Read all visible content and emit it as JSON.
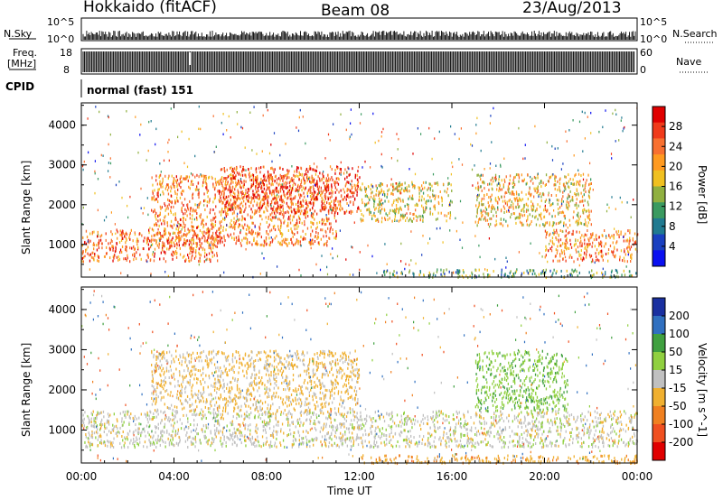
{
  "header": {
    "radar": "Hokkaido (fitACF)",
    "beam": "Beam 08",
    "date": "23/Aug/2013"
  },
  "top_strip": {
    "nsky_label": "N.Sky",
    "nsky_ticks": [
      "10^5",
      "10^0"
    ],
    "nsearch_label": "N.Search",
    "nsearch_ticks": [
      "10^5",
      "10^0"
    ],
    "freq_label_line1": "Freq.",
    "freq_label_line2": "[MHz]",
    "freq_ticks": [
      "18",
      "8"
    ],
    "nave_label": "Nave",
    "nave_ticks": [
      "60",
      "0"
    ],
    "cpid_label": "CPID",
    "cpid_value": "normal (fast) 151"
  },
  "x_axis": {
    "title": "Time UT",
    "ticks": [
      "00:00",
      "04:00",
      "08:00",
      "12:00",
      "16:00",
      "20:00",
      "00:00"
    ]
  },
  "y_axis": {
    "title": "Slant Range [km]",
    "ticks": [
      "4000",
      "3000",
      "2000",
      "1000"
    ]
  },
  "power_scale": {
    "title": "Power [dB]",
    "ticks": [
      "28",
      "24",
      "20",
      "16",
      "12",
      "8",
      "4"
    ],
    "colors": [
      "#e00000",
      "#f03a1a",
      "#f87030",
      "#ff9a20",
      "#f0c020",
      "#90b040",
      "#3a9a60",
      "#207a90",
      "#1a40c0",
      "#0a10f0"
    ]
  },
  "velocity_scale": {
    "title": "Velocity [m s^-1]",
    "ticks": [
      "200",
      "100",
      "50",
      "15",
      "-15",
      "-50",
      "-100",
      "-200"
    ],
    "colors": [
      "#1a30a0",
      "#3070c0",
      "#40a040",
      "#90d040",
      "#c0c0c0",
      "#f0b030",
      "#f08020",
      "#f05020",
      "#e00000"
    ]
  },
  "chart_data": [
    {
      "type": "heatmap",
      "title": "Power [dB]",
      "xlabel": "Time UT",
      "ylabel": "Slant Range [km]",
      "xlim": [
        "00:00",
        "24:00"
      ],
      "ylim": [
        180,
        4560
      ],
      "colorbar_range": [
        0,
        30
      ],
      "bands": [
        {
          "t_start": 0,
          "t_end": 6,
          "r_low": 600,
          "r_high": 1400,
          "level_db": 24
        },
        {
          "t_start": 3,
          "t_end": 11,
          "r_low": 1000,
          "r_high": 2800,
          "level_db": 22
        },
        {
          "t_start": 6,
          "t_end": 12,
          "r_low": 1800,
          "r_high": 3000,
          "level_db": 26
        },
        {
          "t_start": 12,
          "t_end": 16,
          "r_low": 1600,
          "r_high": 2600,
          "level_db": 16
        },
        {
          "t_start": 17,
          "t_end": 22,
          "r_low": 1500,
          "r_high": 2800,
          "level_db": 18
        },
        {
          "t_start": 20,
          "t_end": 24,
          "r_low": 600,
          "r_high": 1400,
          "level_db": 22
        },
        {
          "t_start": 13,
          "t_end": 24,
          "r_low": 200,
          "r_high": 400,
          "level_db": 10
        }
      ]
    },
    {
      "type": "heatmap",
      "title": "Velocity [m s^-1]",
      "xlabel": "Time UT",
      "ylabel": "Slant Range [km]",
      "xlim": [
        "00:00",
        "24:00"
      ],
      "ylim": [
        180,
        4560
      ],
      "colorbar_range": [
        -200,
        200
      ],
      "bands": [
        {
          "t_start": 0,
          "t_end": 24,
          "r_low": 600,
          "r_high": 1500,
          "velocity": 0
        },
        {
          "t_start": 3,
          "t_end": 12,
          "r_low": 1500,
          "r_high": 3000,
          "velocity": -20
        },
        {
          "t_start": 17,
          "t_end": 21,
          "r_low": 1500,
          "r_high": 3000,
          "velocity": 40
        },
        {
          "t_start": 12,
          "t_end": 24,
          "r_low": 200,
          "r_high": 400,
          "velocity": -40
        }
      ]
    }
  ]
}
